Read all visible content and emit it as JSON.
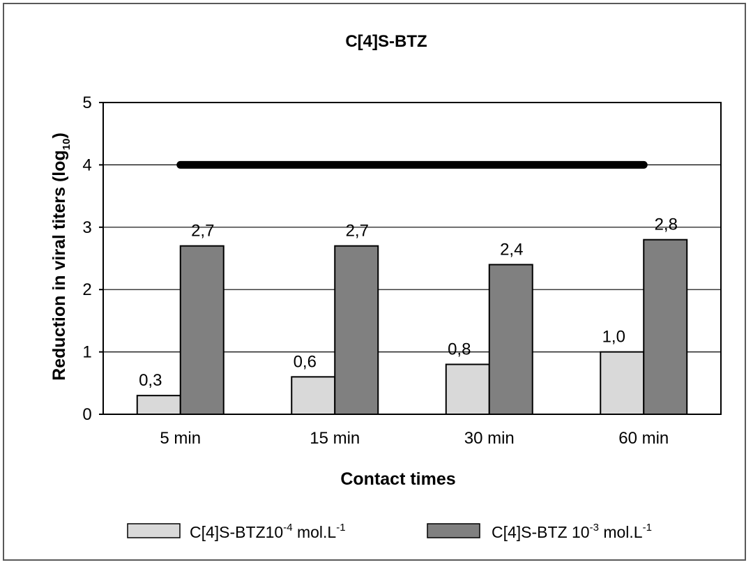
{
  "chart_data": {
    "type": "bar",
    "title": "C[4]S-BTZ",
    "xlabel": "Contact times",
    "ylabel": {
      "main": "Reduction  in viral titers (log",
      "sub": "10",
      "close": ")"
    },
    "categories": [
      "5 min",
      "15 min",
      "30 min",
      "60 min"
    ],
    "series": [
      {
        "legend_main": "C[4]S-BTZ10",
        "legend_exp": "-4",
        "legend_unit": " mol.L",
        "legend_unit_exp": "-1",
        "color": "#d9d9d9",
        "values": [
          0.3,
          0.6,
          0.8,
          1.0
        ],
        "labels": [
          "0,3",
          "0,6",
          "0,8",
          "1,0"
        ]
      },
      {
        "legend_main": "C[4]S-BTZ 10",
        "legend_exp": "-3",
        "legend_unit": " mol.L",
        "legend_unit_exp": "-1",
        "color": "#808080",
        "values": [
          2.7,
          2.7,
          2.4,
          2.8
        ],
        "labels": [
          "2,7",
          "2,7",
          "2,4",
          "2,8"
        ]
      }
    ],
    "reference_line": {
      "y": 4,
      "from_category": "5 min",
      "to_category": "60 min",
      "color": "#000000"
    },
    "ylim": [
      0,
      5
    ],
    "yticks": [
      0,
      1,
      2,
      3,
      4,
      5
    ],
    "grid": true,
    "legend_position": "bottom"
  }
}
